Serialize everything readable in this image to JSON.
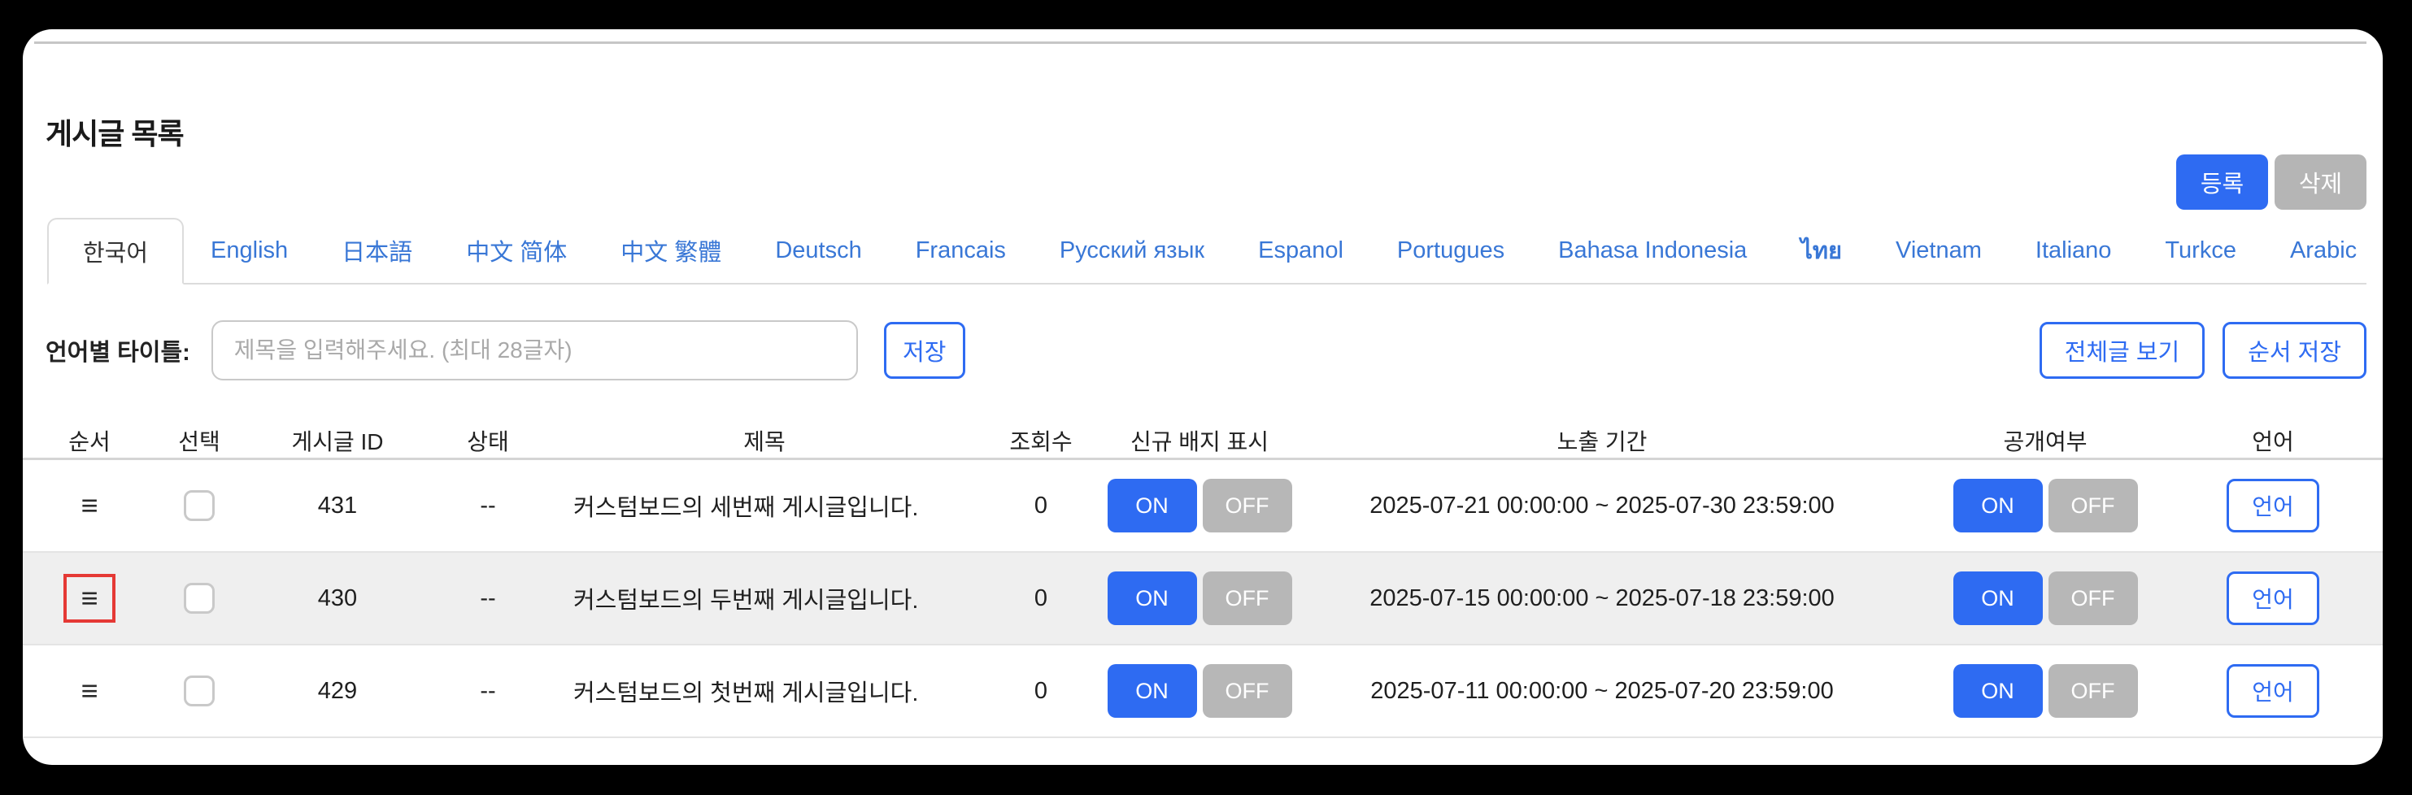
{
  "page": {
    "title": "게시글 목록"
  },
  "actions": {
    "register": "등록",
    "delete": "삭제",
    "save": "저장",
    "view_all": "전체글 보기",
    "save_order": "순서 저장",
    "language": "언어"
  },
  "title_form": {
    "label": "언어별 타이틀:",
    "placeholder": "제목을 입력해주세요. (최대 28글자)",
    "value": ""
  },
  "tabs": [
    {
      "label": "한국어",
      "active": true
    },
    {
      "label": "English",
      "active": false
    },
    {
      "label": "日本語",
      "active": false
    },
    {
      "label": "中文 简体",
      "active": false
    },
    {
      "label": "中文 繁體",
      "active": false
    },
    {
      "label": "Deutsch",
      "active": false
    },
    {
      "label": "Francais",
      "active": false
    },
    {
      "label": "Русский язык",
      "active": false
    },
    {
      "label": "Espanol",
      "active": false
    },
    {
      "label": "Portugues",
      "active": false
    },
    {
      "label": "Bahasa Indonesia",
      "active": false
    },
    {
      "label": "ไทย",
      "active": false
    },
    {
      "label": "Vietnam",
      "active": false
    },
    {
      "label": "Italiano",
      "active": false
    },
    {
      "label": "Turkce",
      "active": false
    },
    {
      "label": "Arabic",
      "active": false
    }
  ],
  "table": {
    "headers": [
      "순서",
      "선택",
      "게시글 ID",
      "상태",
      "제목",
      "조회수",
      "신규 배지 표시",
      "노출 기간",
      "공개여부",
      "언어"
    ],
    "toggle": {
      "on": "ON",
      "off": "OFF"
    },
    "rows": [
      {
        "id": "431",
        "status": "--",
        "title": "커스텀보드의 세번째 게시글입니다.",
        "views": "0",
        "badge": "ON",
        "period": "2025-07-21 00:00:00 ~ 2025-07-30 23:59:00",
        "visible": "ON",
        "highlighted": false
      },
      {
        "id": "430",
        "status": "--",
        "title": "커스텀보드의 두번째 게시글입니다.",
        "views": "0",
        "badge": "ON",
        "period": "2025-07-15 00:00:00 ~ 2025-07-18 23:59:00",
        "visible": "ON",
        "highlighted": true
      },
      {
        "id": "429",
        "status": "--",
        "title": "커스텀보드의 첫번째 게시글입니다.",
        "views": "0",
        "badge": "ON",
        "period": "2025-07-11 00:00:00 ~ 2025-07-20 23:59:00",
        "visible": "ON",
        "highlighted": false
      }
    ]
  },
  "icons": {
    "drag_handle": "≡"
  },
  "colors": {
    "accent_blue": "#2e6bf2",
    "tab_link_blue": "#3977d6",
    "inactive_gray": "#b5b5b5",
    "stripe_gray": "#efefef",
    "highlight_red": "#e53935",
    "background": "#000000"
  }
}
